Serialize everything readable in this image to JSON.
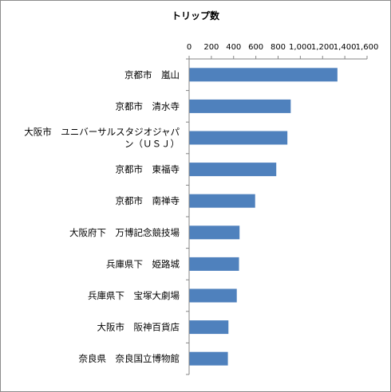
{
  "chart_data": {
    "type": "bar",
    "orientation": "horizontal",
    "title": "トリップ数",
    "xlabel": "",
    "ylabel": "",
    "xlim": [
      0,
      1600
    ],
    "x_ticks": [
      0,
      200,
      400,
      600,
      800,
      1000,
      1200,
      1400,
      1600
    ],
    "x_tick_labels": [
      "0",
      "200",
      "400",
      "600",
      "800",
      "1,000",
      "1,200",
      "1,400",
      "1,600"
    ],
    "x_axis_position": "top",
    "grid": false,
    "legend": "none",
    "bar_color": "#4f81bd",
    "categories": [
      [
        "京都市　嵐山"
      ],
      [
        "京都市　清水寺"
      ],
      [
        "大阪市　ユニバーサルスタジオジャパ",
        "ン（ＵＳＪ）"
      ],
      [
        "京都市　東福寺"
      ],
      [
        "京都市　南禅寺"
      ],
      [
        "大阪府下　万博記念競技場"
      ],
      [
        "兵庫県下　姫路城"
      ],
      [
        "兵庫県下　宝塚大劇場"
      ],
      [
        "大阪市　阪神百貨店"
      ],
      [
        "奈良県　奈良国立博物館"
      ]
    ],
    "values": [
      1330,
      910,
      880,
      780,
      590,
      450,
      445,
      425,
      350,
      345
    ]
  }
}
